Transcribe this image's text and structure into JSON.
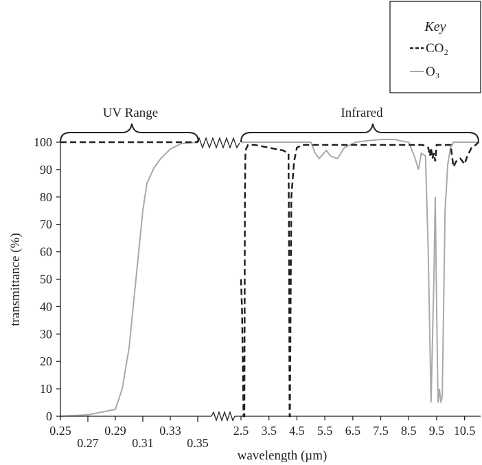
{
  "chart_data": {
    "type": "line",
    "xlabel": "wavelength (µm)",
    "ylabel": "transmittance (%)",
    "ylim": [
      0,
      100
    ],
    "y_ticks": [
      "0",
      "10",
      "20",
      "30",
      "40",
      "50",
      "60",
      "70",
      "80",
      "90",
      "100"
    ],
    "grid": false,
    "legend_position": "top-right",
    "broken_x_axis": true,
    "segments": [
      {
        "name": "UV Range",
        "xlim": [
          0.25,
          0.35
        ],
        "tick_labels_upper": [
          "0.25",
          "0.29",
          "0.33"
        ],
        "tick_labels_lower": [
          "0.27",
          "0.31",
          "0.35"
        ]
      },
      {
        "name": "Infrared",
        "xlim": [
          2.5,
          11.0
        ],
        "tick_labels": [
          "2.5",
          "3.5",
          "4.5",
          "5.5",
          "6.5",
          "7.5",
          "8.5",
          "9.5",
          "10.5"
        ]
      }
    ],
    "legend": {
      "title": "Key",
      "entries": [
        "CO₂",
        "O₃"
      ]
    },
    "series": [
      {
        "name": "CO₂",
        "style": "dashed",
        "color": "#231f20",
        "uv": {
          "x": [
            0.25,
            0.35
          ],
          "y": [
            100,
            100
          ]
        },
        "ir": {
          "x": [
            2.5,
            2.54,
            2.59,
            2.62,
            2.64,
            2.66,
            2.75,
            3.0,
            3.5,
            4.0,
            4.2,
            4.22,
            4.24,
            4.25,
            4.3,
            4.4,
            4.5,
            4.7,
            5.0,
            6.0,
            7.0,
            8.0,
            9.0,
            9.2,
            9.26,
            9.3,
            9.35,
            9.4,
            9.45,
            9.5,
            9.6,
            10.0,
            10.1,
            10.2,
            10.35,
            10.5,
            10.6,
            10.75,
            10.9,
            11.0
          ],
          "y": [
            50,
            38,
            0,
            0,
            80,
            97,
            99,
            99,
            98,
            97,
            96,
            60,
            0,
            0,
            80,
            93,
            98,
            99,
            99,
            99,
            99,
            99,
            99,
            98,
            95,
            98,
            94,
            96,
            93,
            99,
            99,
            99,
            91,
            93,
            94,
            92,
            95,
            98,
            99,
            100
          ]
        }
      },
      {
        "name": "O₃",
        "style": "solid",
        "color": "#a7a9ac",
        "uv": {
          "x": [
            0.25,
            0.27,
            0.285,
            0.29,
            0.295,
            0.3,
            0.305,
            0.31,
            0.313,
            0.318,
            0.323,
            0.33,
            0.338,
            0.35
          ],
          "y": [
            0,
            0.5,
            2,
            2.5,
            10,
            25,
            50,
            75,
            85,
            90.5,
            94,
            97.5,
            99.5,
            100
          ]
        },
        "ir": {
          "x": [
            2.5,
            4.5,
            5.0,
            5.15,
            5.3,
            5.55,
            5.7,
            5.95,
            6.2,
            6.6,
            7.0,
            7.5,
            8.0,
            8.2,
            8.5,
            8.7,
            8.85,
            8.95,
            9.1,
            9.2,
            9.3,
            9.4,
            9.45,
            9.5,
            9.55,
            9.6,
            9.65,
            9.7,
            9.75,
            9.8,
            9.9,
            10.0,
            10.1,
            10.5,
            11.0
          ],
          "y": [
            100,
            100,
            100,
            96,
            94,
            97,
            95,
            94,
            98,
            100,
            100.5,
            101,
            101,
            100.5,
            100,
            95,
            90,
            96,
            95,
            60,
            5,
            50,
            80,
            40,
            5,
            10,
            5,
            7,
            40,
            75,
            92,
            98,
            100,
            100,
            100
          ]
        }
      }
    ],
    "annotations": [
      "UV Range",
      "Infrared"
    ]
  }
}
